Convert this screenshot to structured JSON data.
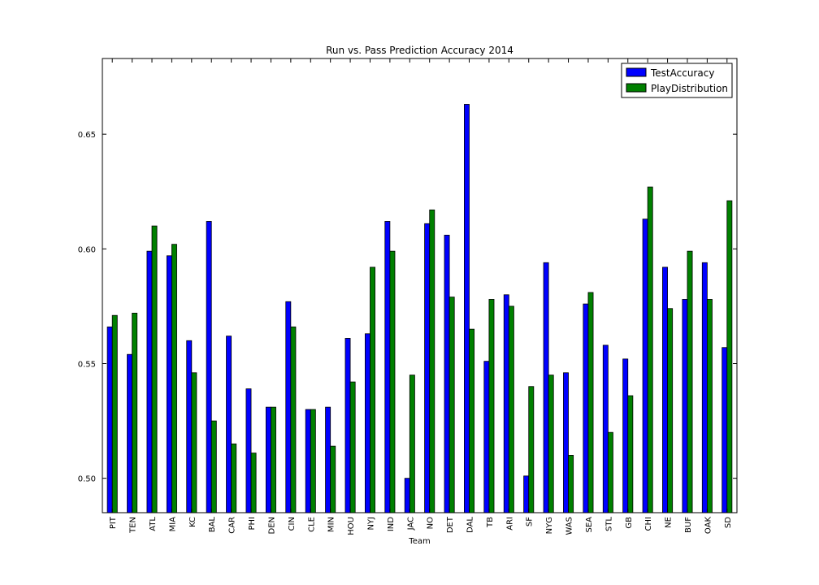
{
  "chart_data": {
    "type": "bar",
    "title": "Run vs. Pass Prediction Accuracy 2014",
    "xlabel": "Team",
    "ylabel": "",
    "ylim": [
      0.485,
      0.683
    ],
    "yticks": [
      0.5,
      0.55,
      0.6,
      0.65
    ],
    "ytick_labels": [
      "0.50",
      "0.55",
      "0.60",
      "0.65"
    ],
    "legend_position": "top-right",
    "categories": [
      "PIT",
      "TEN",
      "ATL",
      "MIA",
      "KC",
      "BAL",
      "CAR",
      "PHI",
      "DEN",
      "CIN",
      "CLE",
      "MIN",
      "HOU",
      "NYJ",
      "IND",
      "JAC",
      "NO",
      "DET",
      "DAL",
      "TB",
      "ARI",
      "SF",
      "NYG",
      "WAS",
      "SEA",
      "STL",
      "GB",
      "CHI",
      "NE",
      "BUF",
      "OAK",
      "SD"
    ],
    "series": [
      {
        "name": "TestAccuracy",
        "color": "#0000ff",
        "values": [
          0.566,
          0.554,
          0.599,
          0.597,
          0.56,
          0.612,
          0.562,
          0.539,
          0.531,
          0.577,
          0.53,
          0.531,
          0.561,
          0.563,
          0.612,
          0.5,
          0.611,
          0.606,
          0.663,
          0.551,
          0.58,
          0.501,
          0.594,
          0.546,
          0.576,
          0.558,
          0.552,
          0.613,
          0.592,
          0.578,
          0.594,
          0.557
        ]
      },
      {
        "name": "PlayDistribution",
        "color": "#008000",
        "values": [
          0.571,
          0.572,
          0.61,
          0.602,
          0.546,
          0.525,
          0.515,
          0.511,
          0.531,
          0.566,
          0.53,
          0.514,
          0.542,
          0.592,
          0.599,
          0.545,
          0.617,
          0.579,
          0.565,
          0.578,
          0.575,
          0.54,
          0.545,
          0.51,
          0.581,
          0.52,
          0.536,
          0.627,
          0.574,
          0.599,
          0.578,
          0.621
        ]
      }
    ]
  }
}
